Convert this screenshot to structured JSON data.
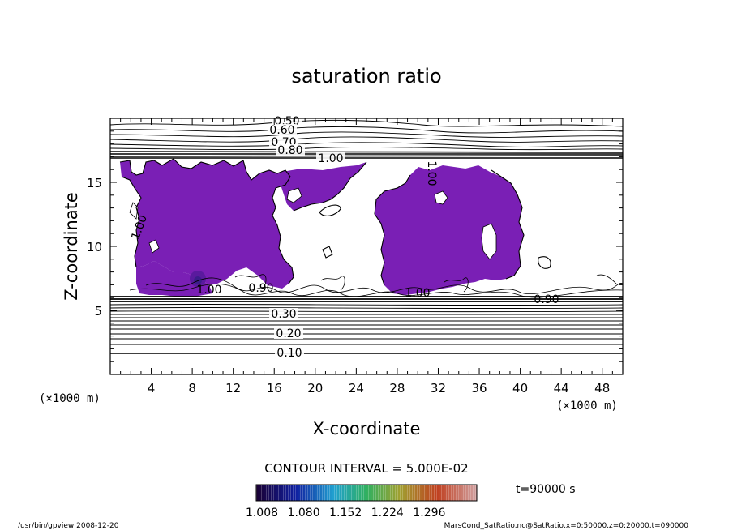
{
  "chart_data": {
    "type": "contour",
    "title": "saturation ratio",
    "xlabel": "X-coordinate",
    "ylabel": "Z-coordinate",
    "x_unit": "(×1000 m)",
    "y_unit": "(×1000 m)",
    "xlim": [
      0,
      50
    ],
    "ylim": [
      0,
      20
    ],
    "x_ticks": [
      4,
      8,
      12,
      16,
      20,
      24,
      28,
      32,
      36,
      40,
      44,
      48
    ],
    "y_ticks": [
      5,
      10,
      15
    ],
    "contour_interval_text": "CONTOUR INTERVAL = 5.000E-02",
    "contour_labels": [
      "0.50",
      "0.60",
      "0.70",
      "0.80",
      "1.00",
      "1.00",
      "1.00",
      "1.00",
      "0.90",
      "0.90",
      "0.30",
      "0.20",
      "0.10"
    ],
    "colorbar": {
      "ticks": [
        "1.008",
        "1.080",
        "1.152",
        "1.224",
        "1.296"
      ]
    },
    "time_text": "t=90000 s",
    "shade_color": "#7a1fb5"
  },
  "footer": {
    "left": "/usr/bin/gpview   2008-12-20",
    "right": "MarsCond_SatRatio.nc@SatRatio,x=0:50000,z=0:20000,t=090000"
  }
}
